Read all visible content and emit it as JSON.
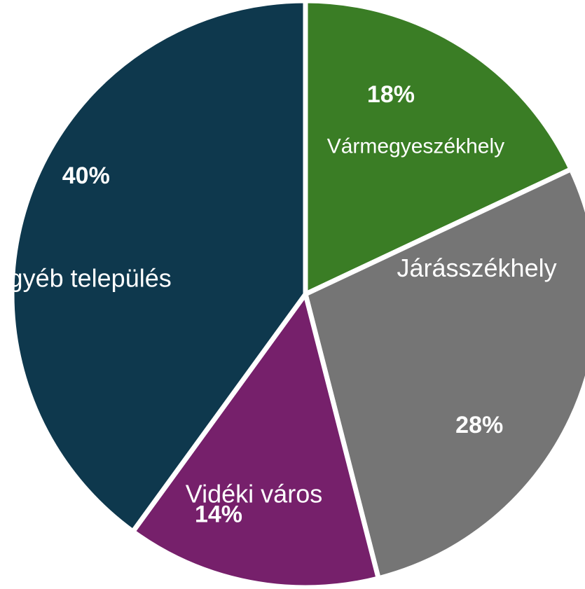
{
  "chart_data": {
    "type": "pie",
    "slices": [
      {
        "label": "Vármegyeszékhely",
        "value": 18,
        "value_label": "18%",
        "color": "#3a7d25"
      },
      {
        "label": "Járásszékhely",
        "value": 28,
        "value_label": "28%",
        "color": "#757575"
      },
      {
        "label": "Vidéki város",
        "value": 14,
        "value_label": "14%",
        "color": "#76206b"
      },
      {
        "label": "Egyéb település",
        "value": 40,
        "value_label": "40%",
        "color": "#0e384d"
      }
    ],
    "start_angle_deg": 0,
    "direction": "clockwise",
    "legend": "none"
  }
}
